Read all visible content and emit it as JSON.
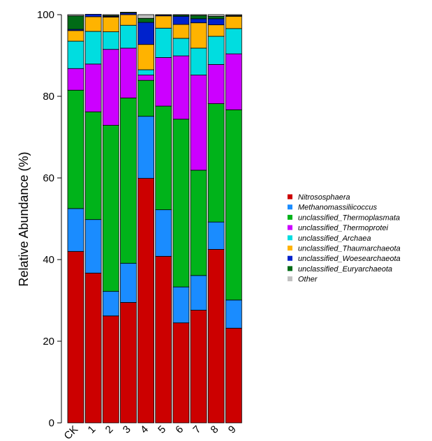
{
  "chart_data": {
    "type": "bar",
    "stacked": true,
    "ylabel": "Relative Abundance (%)",
    "ylim": [
      0,
      100
    ],
    "yticks": [
      0,
      20,
      40,
      60,
      80,
      100
    ],
    "categories": [
      "CK",
      "1",
      "2",
      "3",
      "4",
      "5",
      "6",
      "7",
      "8",
      "9"
    ],
    "legend_position": "right",
    "series": [
      {
        "name": "Nitrososphaera",
        "color": "#cc0000",
        "values": [
          42.0,
          36.7,
          26.2,
          29.5,
          59.9,
          40.8,
          24.5,
          27.6,
          42.5,
          23.2
        ]
      },
      {
        "name": "Methanomassiliicoccus",
        "color": "#1a8cff",
        "values": [
          10.5,
          13.1,
          6.0,
          9.6,
          15.2,
          11.4,
          8.8,
          8.5,
          6.7,
          6.9
        ]
      },
      {
        "name": "unclassified_Thermoplasmata",
        "color": "#00b31a",
        "values": [
          29.0,
          26.4,
          40.7,
          40.5,
          8.8,
          25.4,
          41.1,
          25.8,
          29.0,
          46.6
        ]
      },
      {
        "name": "unclassified_Thermoprotei",
        "color": "#cc00ff",
        "values": [
          5.3,
          11.7,
          18.6,
          12.2,
          1.3,
          11.9,
          15.5,
          23.3,
          9.6,
          13.7
        ]
      },
      {
        "name": "unclassified_Archaea",
        "color": "#00dde0",
        "values": [
          6.7,
          8.0,
          4.3,
          5.6,
          1.3,
          7.2,
          4.3,
          6.6,
          6.9,
          6.2
        ]
      },
      {
        "name": "unclassified_Thaumarchaeota",
        "color": "#ffb300",
        "values": [
          2.6,
          3.6,
          3.6,
          2.6,
          6.2,
          3.0,
          3.4,
          6.2,
          2.8,
          3.0
        ]
      },
      {
        "name": "unclassified_Woesearchaeota",
        "color": "#0022cc",
        "values": [
          0.3,
          0.6,
          0.2,
          0.4,
          5.4,
          0.2,
          2.0,
          1.0,
          1.5,
          0.1
        ]
      },
      {
        "name": "unclassified_Euryarchaeota",
        "color": "#006b16",
        "values": [
          3.3,
          0.0,
          0.2,
          0.2,
          1.0,
          0.0,
          0.3,
          0.8,
          0.6,
          0.1
        ]
      },
      {
        "name": "Other",
        "color": "#c0c0c0",
        "values": [
          0.3,
          0.0,
          0.2,
          0.0,
          0.9,
          0.1,
          0.1,
          0.2,
          0.4,
          0.2
        ]
      }
    ]
  }
}
